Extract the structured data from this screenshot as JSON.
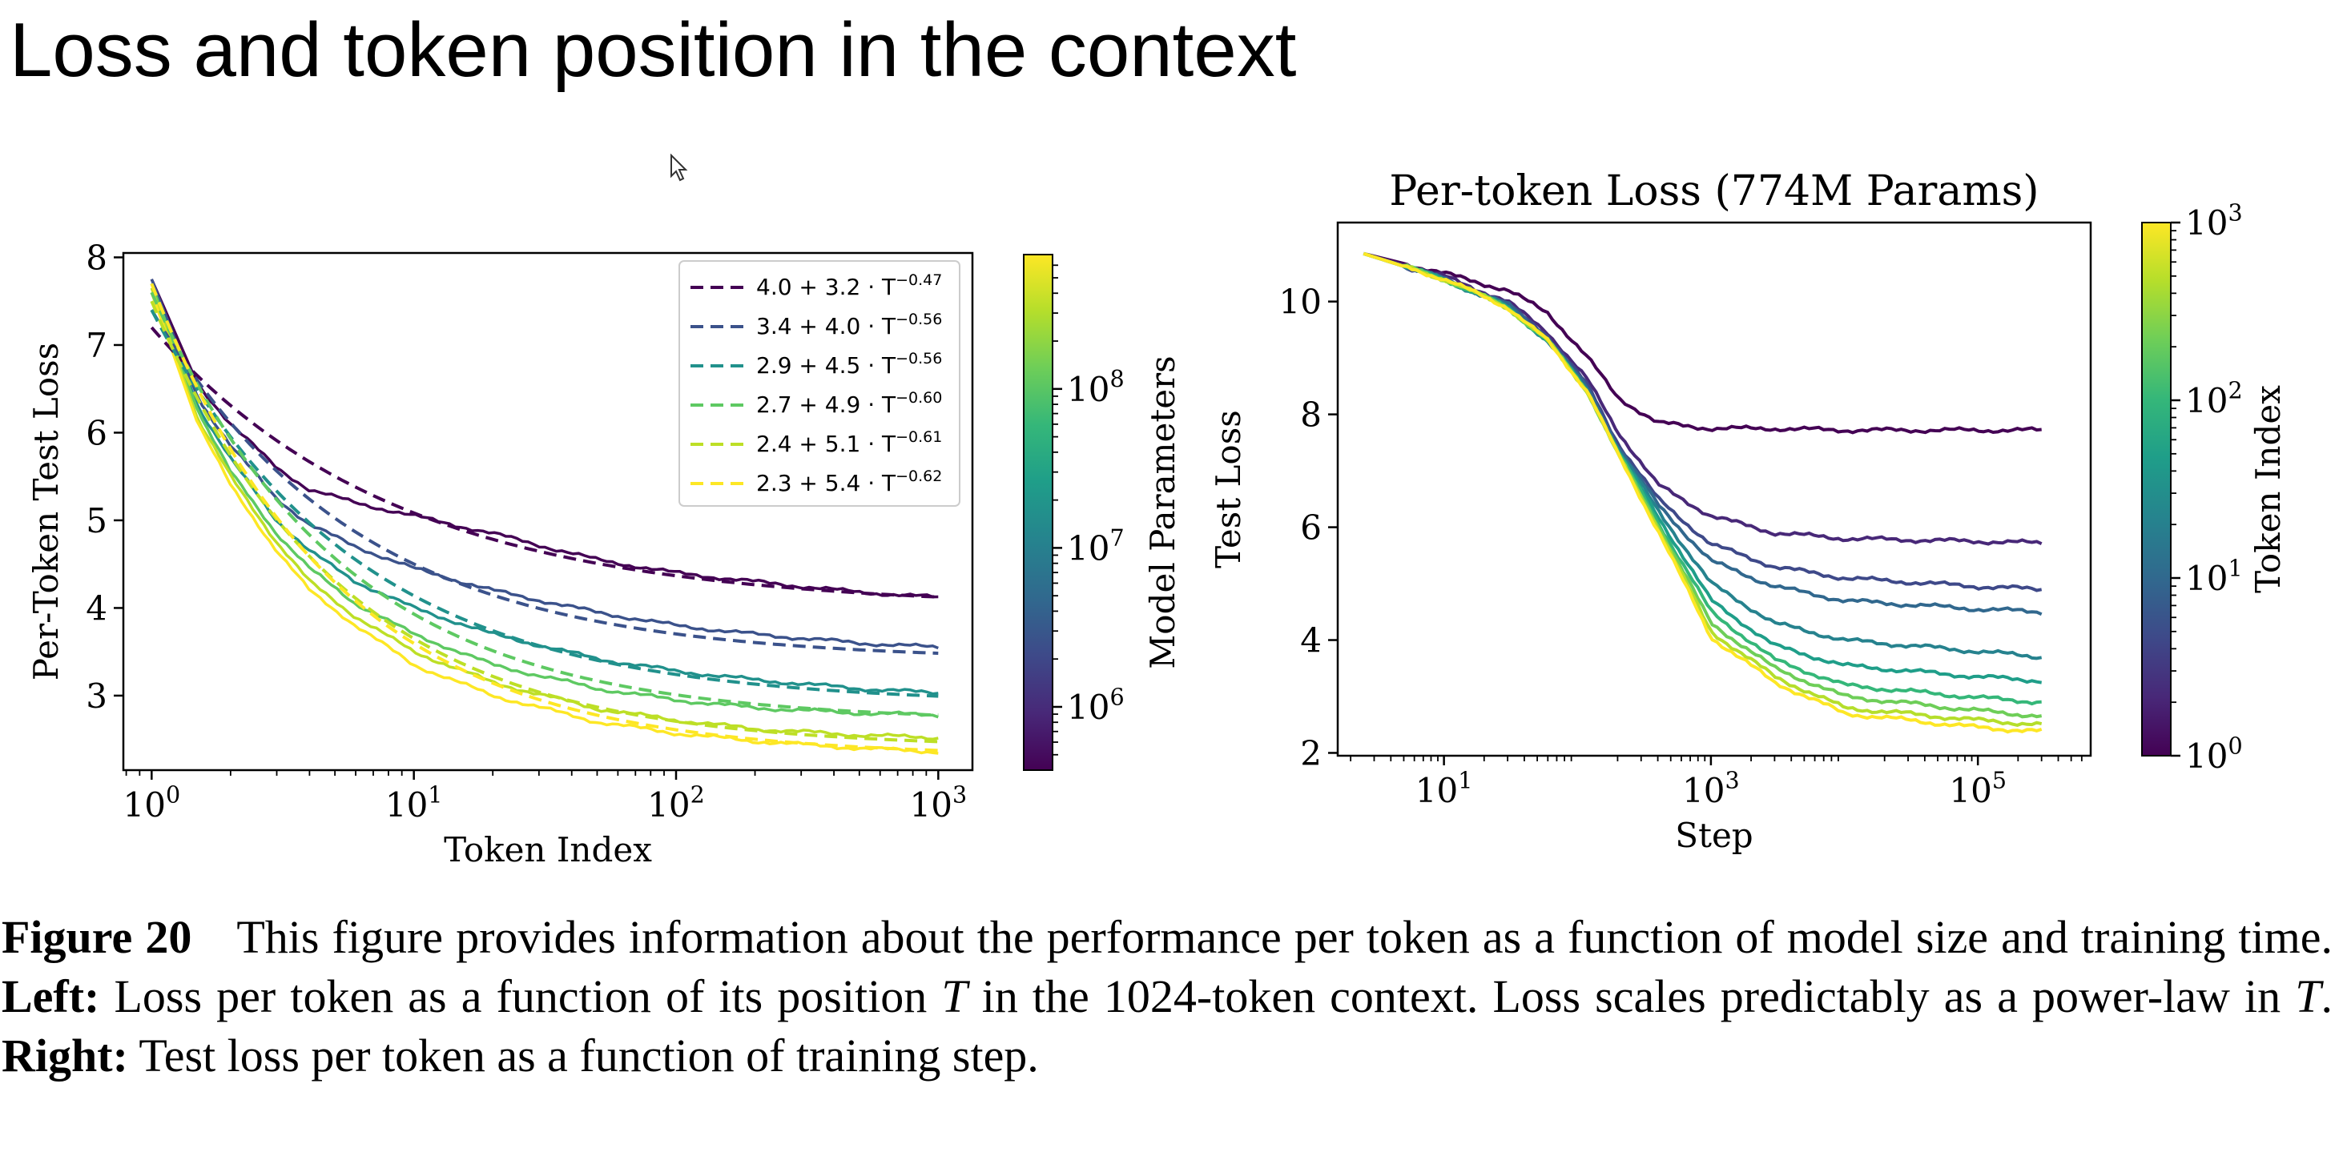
{
  "slide": {
    "title": "Loss and token position in the context"
  },
  "caption": {
    "figure_label": "Figure 20",
    "intro": "This figure provides information about the performance per token as a function of model size and training time.",
    "left_label": "Left:",
    "left_text_a": "Loss per token as a function of its position",
    "T_symbol": "T",
    "left_text_b": "in the 1024-token context. Loss scales predictably as a power-law in",
    "left_text_c": ".",
    "right_label": "Right:",
    "right_text": "Test loss per token as a function of training step."
  },
  "colors": {
    "viridis": [
      "#440154",
      "#482878",
      "#3e4989",
      "#31688e",
      "#26828e",
      "#1f9e89",
      "#35b779",
      "#6ece58",
      "#b5de2b",
      "#fde725"
    ]
  },
  "chart_data": [
    {
      "type": "line",
      "title": "",
      "xlabel": "Token Index",
      "ylabel": "Per-Token Test Loss",
      "x_scale": "log",
      "xlim": [
        0.78,
        1350
      ],
      "ylim": [
        2.15,
        8.05
      ],
      "x_ticks": [
        1,
        10,
        100,
        1000
      ],
      "x_tick_labels": [
        {
          "base": "10",
          "exp": "0"
        },
        {
          "base": "10",
          "exp": "1"
        },
        {
          "base": "10",
          "exp": "2"
        },
        {
          "base": "10",
          "exp": "3"
        }
      ],
      "y_ticks": [
        3,
        4,
        5,
        6,
        7,
        8
      ],
      "y_tick_labels": [
        "3",
        "4",
        "5",
        "6",
        "7",
        "8"
      ],
      "legend_position": "top-right",
      "fits": [
        {
          "name": "4.0 + 3.2 · T^-0.47",
          "label_main": "4.0 + 3.2 · T",
          "label_exp": "−0.47",
          "a": 4.0,
          "b": 3.2,
          "c": 0.47,
          "color": "#440154"
        },
        {
          "name": "3.4 + 4.0 · T^-0.56",
          "label_main": "3.4 + 4.0 · T",
          "label_exp": "−0.56",
          "a": 3.4,
          "b": 4.0,
          "c": 0.56,
          "color": "#3b528b"
        },
        {
          "name": "2.9 + 4.5 · T^-0.56",
          "label_main": "2.9 + 4.5 · T",
          "label_exp": "−0.56",
          "a": 2.9,
          "b": 4.5,
          "c": 0.56,
          "color": "#21918c"
        },
        {
          "name": "2.7 + 4.9 · T^-0.60",
          "label_main": "2.7 + 4.9 · T",
          "label_exp": "−0.60",
          "a": 2.7,
          "b": 4.9,
          "c": 0.6,
          "color": "#5ec962"
        },
        {
          "name": "2.4 + 5.1 · T^-0.61",
          "label_main": "2.4 + 5.1 · T",
          "label_exp": "−0.61",
          "a": 2.4,
          "b": 5.1,
          "c": 0.61,
          "color": "#bddf26"
        },
        {
          "name": "2.3 + 5.4 · T^-0.62",
          "label_main": "2.3 + 5.4 · T",
          "label_exp": "−0.62",
          "a": 2.3,
          "b": 5.4,
          "c": 0.62,
          "color": "#fde725"
        }
      ],
      "series": [
        {
          "color": "#440154",
          "x": [
            1,
            1.5,
            2,
            3,
            4,
            6,
            10,
            20,
            50,
            100,
            200,
            500,
            1000
          ],
          "y": [
            7.75,
            6.55,
            6.1,
            5.6,
            5.35,
            5.2,
            5.05,
            4.85,
            4.55,
            4.4,
            4.3,
            4.18,
            4.12
          ]
        },
        {
          "color": "#3b528b",
          "x": [
            1,
            1.5,
            2,
            3,
            4,
            6,
            10,
            20,
            50,
            100,
            200,
            500,
            1000
          ],
          "y": [
            7.75,
            6.4,
            5.85,
            5.25,
            4.95,
            4.7,
            4.45,
            4.2,
            3.95,
            3.8,
            3.7,
            3.6,
            3.55
          ]
        },
        {
          "color": "#21918c",
          "x": [
            1,
            1.5,
            2,
            3,
            4,
            6,
            10,
            20,
            50,
            100,
            200,
            500,
            1000
          ],
          "y": [
            7.7,
            6.3,
            5.7,
            5.0,
            4.65,
            4.3,
            4.0,
            3.7,
            3.42,
            3.28,
            3.18,
            3.08,
            3.03
          ]
        },
        {
          "color": "#5ec962",
          "x": [
            1,
            1.5,
            2,
            3,
            4,
            6,
            10,
            20,
            50,
            100,
            200,
            500,
            1000
          ],
          "y": [
            7.7,
            6.25,
            5.55,
            4.85,
            4.45,
            4.05,
            3.7,
            3.35,
            3.08,
            2.95,
            2.86,
            2.8,
            2.78
          ]
        },
        {
          "color": "#bddf26",
          "x": [
            1,
            1.5,
            2,
            3,
            4,
            6,
            10,
            20,
            50,
            100,
            200,
            500,
            1000
          ],
          "y": [
            7.65,
            6.15,
            5.5,
            4.75,
            4.3,
            3.9,
            3.5,
            3.15,
            2.85,
            2.72,
            2.62,
            2.55,
            2.52
          ]
        },
        {
          "color": "#fde725",
          "x": [
            1,
            1.5,
            2,
            3,
            4,
            6,
            10,
            20,
            50,
            100,
            200,
            500,
            1000
          ],
          "y": [
            7.6,
            6.1,
            5.4,
            4.65,
            4.2,
            3.8,
            3.35,
            3.0,
            2.7,
            2.57,
            2.48,
            2.4,
            2.36
          ]
        }
      ],
      "colorbar": {
        "label": "Model Parameters",
        "scale": "log",
        "range": [
          400000,
          700000000
        ],
        "ticks": [
          {
            "value": 1000000,
            "base": "10",
            "exp": "6"
          },
          {
            "value": 10000000,
            "base": "10",
            "exp": "7"
          },
          {
            "value": 100000000,
            "base": "10",
            "exp": "8"
          }
        ]
      }
    },
    {
      "type": "line",
      "title": "Per-token Loss (774M Params)",
      "xlabel": "Step",
      "ylabel": "Test Loss",
      "x_scale": "log",
      "xlim": [
        1.6,
        700000
      ],
      "ylim": [
        1.95,
        11.4
      ],
      "x_ticks": [
        10,
        1000,
        100000
      ],
      "x_tick_labels": [
        {
          "base": "10",
          "exp": "1"
        },
        {
          "base": "10",
          "exp": "3"
        },
        {
          "base": "10",
          "exp": "5"
        }
      ],
      "y_ticks": [
        2,
        4,
        6,
        8,
        10
      ],
      "y_tick_labels": [
        "2",
        "4",
        "6",
        "8",
        "10"
      ],
      "series": [
        {
          "color": "#440154",
          "x": [
            2.5,
            10,
            30,
            60,
            120,
            200,
            400,
            1000,
            3000,
            10000,
            100000,
            300000
          ],
          "y": [
            10.85,
            10.5,
            10.2,
            9.8,
            9.0,
            8.3,
            7.85,
            7.75,
            7.75,
            7.72,
            7.72,
            7.72
          ]
        },
        {
          "color": "#482878",
          "x": [
            2.5,
            10,
            30,
            60,
            120,
            200,
            400,
            1000,
            3000,
            10000,
            100000,
            300000
          ],
          "y": [
            10.85,
            10.45,
            10.0,
            9.45,
            8.6,
            7.7,
            6.75,
            6.2,
            5.9,
            5.8,
            5.75,
            5.72
          ]
        },
        {
          "color": "#3e4989",
          "x": [
            2.5,
            10,
            30,
            60,
            120,
            200,
            400,
            1000,
            3000,
            10000,
            100000,
            300000
          ],
          "y": [
            10.85,
            10.4,
            9.95,
            9.4,
            8.5,
            7.5,
            6.5,
            5.7,
            5.3,
            5.1,
            4.95,
            4.9
          ]
        },
        {
          "color": "#31688e",
          "x": [
            2.5,
            10,
            30,
            60,
            120,
            200,
            400,
            1000,
            3000,
            10000,
            100000,
            300000
          ],
          "y": [
            10.85,
            10.4,
            9.95,
            9.35,
            8.45,
            7.45,
            6.4,
            5.4,
            4.95,
            4.7,
            4.55,
            4.5
          ]
        },
        {
          "color": "#26828e",
          "x": [
            2.5,
            10,
            30,
            60,
            120,
            200,
            400,
            1000,
            3000,
            10000,
            100000,
            300000
          ],
          "y": [
            10.85,
            10.4,
            9.9,
            9.3,
            8.4,
            7.4,
            6.3,
            5.0,
            4.3,
            4.0,
            3.8,
            3.7
          ]
        },
        {
          "color": "#1f9e89",
          "x": [
            2.5,
            10,
            30,
            60,
            120,
            200,
            400,
            1000,
            3000,
            10000,
            100000,
            300000
          ],
          "y": [
            10.85,
            10.4,
            9.9,
            9.3,
            8.4,
            7.35,
            6.2,
            4.7,
            3.9,
            3.55,
            3.35,
            3.28
          ]
        },
        {
          "color": "#35b779",
          "x": [
            2.5,
            10,
            30,
            60,
            120,
            200,
            400,
            1000,
            3000,
            10000,
            100000,
            300000
          ],
          "y": [
            10.85,
            10.4,
            9.9,
            9.3,
            8.4,
            7.35,
            6.1,
            4.5,
            3.65,
            3.2,
            2.98,
            2.9
          ]
        },
        {
          "color": "#6ece58",
          "x": [
            2.5,
            10,
            30,
            60,
            120,
            200,
            400,
            1000,
            3000,
            10000,
            100000,
            300000
          ],
          "y": [
            10.85,
            10.4,
            9.9,
            9.3,
            8.4,
            7.3,
            6.05,
            4.3,
            3.5,
            3.0,
            2.75,
            2.65
          ]
        },
        {
          "color": "#b5de2b",
          "x": [
            2.5,
            10,
            30,
            60,
            120,
            200,
            400,
            1000,
            3000,
            10000,
            100000,
            300000
          ],
          "y": [
            10.85,
            10.4,
            9.9,
            9.3,
            8.4,
            7.3,
            6.0,
            4.15,
            3.35,
            2.8,
            2.58,
            2.5
          ]
        },
        {
          "color": "#fde725",
          "x": [
            2.5,
            10,
            30,
            60,
            120,
            200,
            400,
            1000,
            3000,
            10000,
            100000,
            300000
          ],
          "y": [
            10.85,
            10.4,
            9.9,
            9.3,
            8.4,
            7.3,
            5.95,
            4.05,
            3.25,
            2.7,
            2.45,
            2.38
          ]
        }
      ],
      "colorbar": {
        "label": "Token Index",
        "scale": "log",
        "range": [
          1,
          1000
        ],
        "ticks": [
          {
            "value": 1,
            "base": "10",
            "exp": "0"
          },
          {
            "value": 10,
            "base": "10",
            "exp": "1"
          },
          {
            "value": 100,
            "base": "10",
            "exp": "2"
          },
          {
            "value": 1000,
            "base": "10",
            "exp": "3"
          }
        ]
      }
    }
  ]
}
